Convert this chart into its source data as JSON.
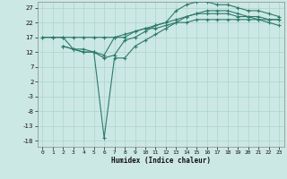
{
  "xlabel": "Humidex (Indice chaleur)",
  "background_color": "#cce8e4",
  "grid_color": "#aad4cc",
  "line_color": "#2d7a6a",
  "xlim": [
    -0.5,
    23.5
  ],
  "ylim": [
    -20,
    29
  ],
  "xticks": [
    0,
    1,
    2,
    3,
    4,
    5,
    6,
    7,
    8,
    9,
    10,
    11,
    12,
    13,
    14,
    15,
    16,
    17,
    18,
    19,
    20,
    21,
    22,
    23
  ],
  "yticks": [
    -18,
    -13,
    -8,
    -3,
    2,
    7,
    12,
    17,
    22,
    27
  ],
  "line1_x": [
    0,
    1,
    2,
    3,
    4,
    5,
    6,
    7,
    8,
    9,
    10,
    11,
    12,
    13,
    14,
    15,
    16,
    17,
    18,
    19,
    20,
    21,
    22,
    23
  ],
  "line1_y": [
    17,
    17,
    17,
    13,
    13,
    12,
    11,
    17,
    17,
    19,
    20,
    21,
    22,
    23,
    24,
    25,
    25,
    25,
    25,
    24,
    24,
    24,
    23,
    23
  ],
  "line2_x": [
    2,
    3,
    4,
    5,
    6,
    7,
    8,
    9,
    10,
    11,
    12,
    13,
    14,
    15,
    16,
    17,
    18,
    19,
    20,
    21,
    22,
    23
  ],
  "line2_y": [
    14,
    13,
    12,
    12,
    10,
    11,
    16,
    17,
    19,
    21,
    22,
    26,
    28,
    29,
    29,
    28,
    28,
    27,
    26,
    26,
    25,
    24
  ],
  "line3_x": [
    2,
    3,
    4,
    5,
    6,
    7,
    8,
    9,
    10,
    11,
    12,
    13,
    14,
    15,
    16,
    17,
    18,
    19,
    20,
    21,
    22,
    23
  ],
  "line3_y": [
    14,
    13,
    12,
    12,
    -17,
    10,
    10,
    14,
    16,
    18,
    20,
    22,
    24,
    25,
    26,
    26,
    26,
    25,
    24,
    23,
    22,
    21
  ],
  "line4_x": [
    0,
    1,
    2,
    3,
    4,
    5,
    6,
    7,
    8,
    9,
    10,
    11,
    12,
    13,
    14,
    15,
    16,
    17,
    18,
    19,
    20,
    21,
    22,
    23
  ],
  "line4_y": [
    17,
    17,
    17,
    17,
    17,
    17,
    17,
    17,
    18,
    19,
    20,
    20,
    21,
    22,
    22,
    23,
    23,
    23,
    23,
    23,
    23,
    23,
    23,
    23
  ]
}
